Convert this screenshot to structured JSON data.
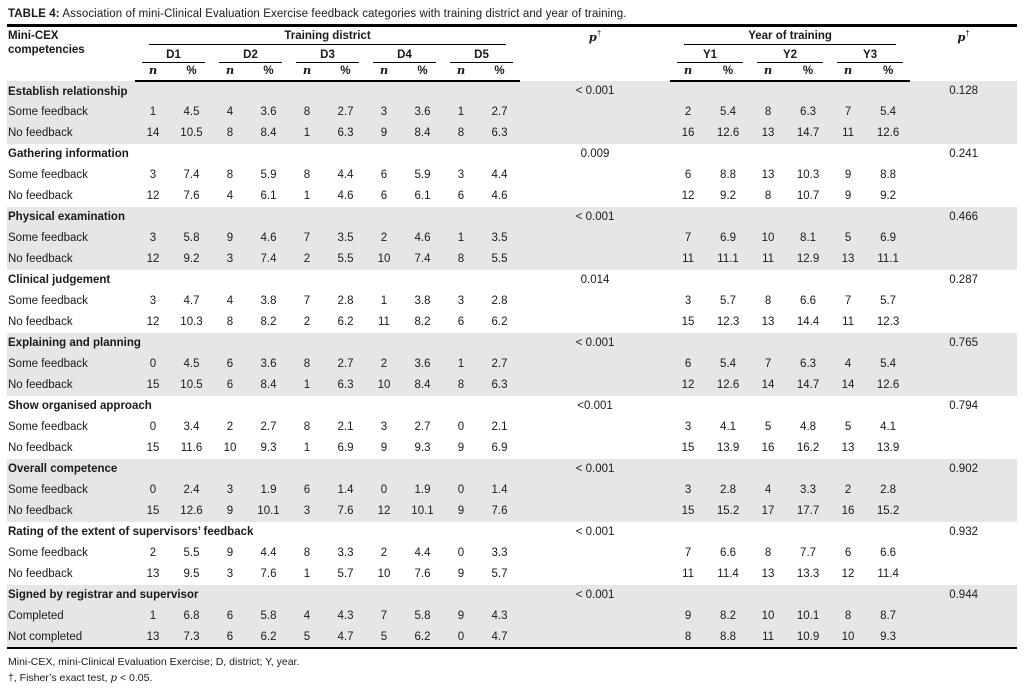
{
  "title": {
    "label": "TABLE 4:",
    "text": " Association of mini-Clinical Evaluation Exercise feedback categories with training district and year of training."
  },
  "header": {
    "row_header": "Mini-CEX competencies",
    "district_group": "Training district",
    "year_group": "Year of training",
    "p_label": "p",
    "dagger": "†",
    "districts": [
      "D1",
      "D2",
      "D3",
      "D4",
      "D5"
    ],
    "years": [
      "Y1",
      "Y2",
      "Y3"
    ],
    "n_label": "n",
    "pct_label": "%"
  },
  "groups": [
    {
      "name": "Establish relationship",
      "p_district": "< 0.001",
      "p_year": "0.128",
      "shaded": true,
      "rows": [
        {
          "label": "Some feedback",
          "d": [
            "1",
            "4.5",
            "4",
            "3.6",
            "8",
            "2.7",
            "3",
            "3.6",
            "1",
            "2.7"
          ],
          "y": [
            "2",
            "5.4",
            "8",
            "6.3",
            "7",
            "5.4"
          ]
        },
        {
          "label": "No feedback",
          "d": [
            "14",
            "10.5",
            "8",
            "8.4",
            "1",
            "6.3",
            "9",
            "8.4",
            "8",
            "6.3"
          ],
          "y": [
            "16",
            "12.6",
            "13",
            "14.7",
            "11",
            "12.6"
          ]
        }
      ]
    },
    {
      "name": "Gathering information",
      "p_district": "0.009",
      "p_year": "0.241",
      "shaded": false,
      "rows": [
        {
          "label": "Some feedback",
          "d": [
            "3",
            "7.4",
            "8",
            "5.9",
            "8",
            "4.4",
            "6",
            "5.9",
            "3",
            "4.4"
          ],
          "y": [
            "6",
            "8.8",
            "13",
            "10.3",
            "9",
            "8.8"
          ]
        },
        {
          "label": "No feedback",
          "d": [
            "12",
            "7.6",
            "4",
            "6.1",
            "1",
            "4.6",
            "6",
            "6.1",
            "6",
            "4.6"
          ],
          "y": [
            "12",
            "9.2",
            "8",
            "10.7",
            "9",
            "9.2"
          ]
        }
      ]
    },
    {
      "name": "Physical examination",
      "p_district": "< 0.001",
      "p_year": "0.466",
      "shaded": true,
      "rows": [
        {
          "label": "Some feedback",
          "d": [
            "3",
            "5.8",
            "9",
            "4.6",
            "7",
            "3.5",
            "2",
            "4.6",
            "1",
            "3.5"
          ],
          "y": [
            "7",
            "6.9",
            "10",
            "8.1",
            "5",
            "6.9"
          ]
        },
        {
          "label": "No feedback",
          "d": [
            "12",
            "9.2",
            "3",
            "7.4",
            "2",
            "5.5",
            "10",
            "7.4",
            "8",
            "5.5"
          ],
          "y": [
            "11",
            "11.1",
            "11",
            "12.9",
            "13",
            "11.1"
          ]
        }
      ]
    },
    {
      "name": "Clinical judgement",
      "p_district": "0.014",
      "p_year": "0.287",
      "shaded": false,
      "rows": [
        {
          "label": "Some feedback",
          "d": [
            "3",
            "4.7",
            "4",
            "3.8",
            "7",
            "2.8",
            "1",
            "3.8",
            "3",
            "2.8"
          ],
          "y": [
            "3",
            "5.7",
            "8",
            "6.6",
            "7",
            "5.7"
          ]
        },
        {
          "label": "No feedback",
          "d": [
            "12",
            "10.3",
            "8",
            "8.2",
            "2",
            "6.2",
            "11",
            "8.2",
            "6",
            "6.2"
          ],
          "y": [
            "15",
            "12.3",
            "13",
            "14.4",
            "11",
            "12.3"
          ]
        }
      ]
    },
    {
      "name": "Explaining and planning",
      "p_district": "< 0.001",
      "p_year": "0.765",
      "shaded": true,
      "rows": [
        {
          "label": "Some feedback",
          "d": [
            "0",
            "4.5",
            "6",
            "3.6",
            "8",
            "2.7",
            "2",
            "3.6",
            "1",
            "2.7"
          ],
          "y": [
            "6",
            "5.4",
            "7",
            "6.3",
            "4",
            "5.4"
          ]
        },
        {
          "label": "No feedback",
          "d": [
            "15",
            "10.5",
            "6",
            "8.4",
            "1",
            "6.3",
            "10",
            "8.4",
            "8",
            "6.3"
          ],
          "y": [
            "12",
            "12.6",
            "14",
            "14.7",
            "14",
            "12.6"
          ]
        }
      ]
    },
    {
      "name": "Show organised approach",
      "p_district": "<0.001",
      "p_year": "0.794",
      "shaded": false,
      "rows": [
        {
          "label": "Some feedback",
          "d": [
            "0",
            "3.4",
            "2",
            "2.7",
            "8",
            "2.1",
            "3",
            "2.7",
            "0",
            "2.1"
          ],
          "y": [
            "3",
            "4.1",
            "5",
            "4.8",
            "5",
            "4.1"
          ]
        },
        {
          "label": "No feedback",
          "d": [
            "15",
            "11.6",
            "10",
            "9.3",
            "1",
            "6.9",
            "9",
            "9.3",
            "9",
            "6.9"
          ],
          "y": [
            "15",
            "13.9",
            "16",
            "16.2",
            "13",
            "13.9"
          ]
        }
      ]
    },
    {
      "name": "Overall competence",
      "p_district": "< 0.001",
      "p_year": "0.902",
      "shaded": true,
      "rows": [
        {
          "label": "Some feedback",
          "d": [
            "0",
            "2.4",
            "3",
            "1.9",
            "6",
            "1.4",
            "0",
            "1.9",
            "0",
            "1.4"
          ],
          "y": [
            "3",
            "2.8",
            "4",
            "3.3",
            "2",
            "2.8"
          ]
        },
        {
          "label": "No feedback",
          "d": [
            "15",
            "12.6",
            "9",
            "10.1",
            "3",
            "7.6",
            "12",
            "10.1",
            "9",
            "7.6"
          ],
          "y": [
            "15",
            "15.2",
            "17",
            "17.7",
            "16",
            "15.2"
          ]
        }
      ]
    },
    {
      "name": "Rating of the extent of supervisors’ feedback",
      "p_district": "< 0.001",
      "p_year": "0.932",
      "shaded": false,
      "rows": [
        {
          "label": "Some feedback",
          "d": [
            "2",
            "5.5",
            "9",
            "4.4",
            "8",
            "3.3",
            "2",
            "4.4",
            "0",
            "3.3"
          ],
          "y": [
            "7",
            "6.6",
            "8",
            "7.7",
            "6",
            "6.6"
          ]
        },
        {
          "label": "No feedback",
          "d": [
            "13",
            "9.5",
            "3",
            "7.6",
            "1",
            "5.7",
            "10",
            "7.6",
            "9",
            "5.7"
          ],
          "y": [
            "11",
            "11.4",
            "13",
            "13.3",
            "12",
            "11.4"
          ]
        }
      ]
    },
    {
      "name": "Signed by registrar and supervisor",
      "p_district": "< 0.001",
      "p_year": "0.944",
      "shaded": true,
      "rows": [
        {
          "label": "Completed",
          "d": [
            "1",
            "6.8",
            "6",
            "5.8",
            "4",
            "4.3",
            "7",
            "5.8",
            "9",
            "4.3"
          ],
          "y": [
            "9",
            "8.2",
            "10",
            "10.1",
            "8",
            "8.7"
          ]
        },
        {
          "label": "Not completed",
          "d": [
            "13",
            "7.3",
            "6",
            "6.2",
            "5",
            "4.7",
            "5",
            "6.2",
            "0",
            "4.7"
          ],
          "y": [
            "8",
            "8.8",
            "11",
            "10.9",
            "10",
            "9.3"
          ]
        }
      ]
    }
  ],
  "footnotes": {
    "line1": "Mini-CEX, mini-Clinical Evaluation Exercise; D, district; Y, year.",
    "line2_pre": "†, Fisher’s exact test, ",
    "line2_p": "p",
    "line2_post": " < 0.05."
  }
}
